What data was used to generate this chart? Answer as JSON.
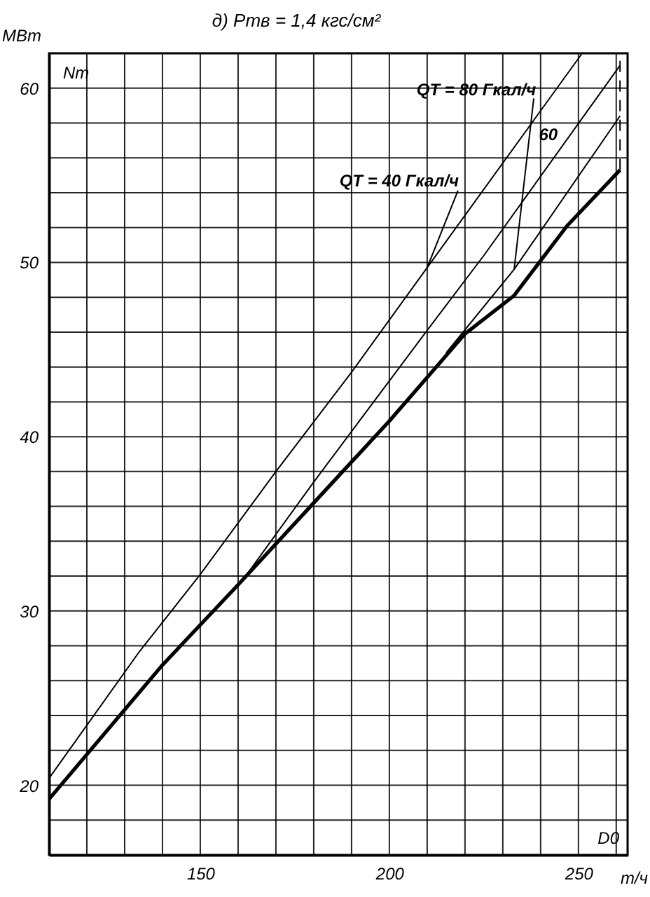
{
  "chart_data": {
    "type": "line",
    "title": "д) Pтв = 1,4 кгс/см²",
    "xlabel": "т/ч",
    "ylabel": "МВт",
    "annotations": [
      "Nт",
      "D0"
    ],
    "xlim": [
      110,
      263
    ],
    "ylim": [
      16,
      62
    ],
    "xticks": [
      {
        "value": 110,
        "label": null
      },
      {
        "value": 120,
        "label": null
      },
      {
        "value": 130,
        "label": null
      },
      {
        "value": 140,
        "label": null
      },
      150,
      {
        "value": 160,
        "label": null
      },
      {
        "value": 170,
        "label": null
      },
      {
        "value": 180,
        "label": null
      },
      {
        "value": 190,
        "label": null
      },
      200,
      {
        "value": 210,
        "label": null
      },
      {
        "value": 220,
        "label": null
      },
      {
        "value": 230,
        "label": null
      },
      {
        "value": 240,
        "label": null
      },
      250,
      {
        "value": 260,
        "label": null
      }
    ],
    "yticks": [
      {
        "value": 18,
        "label": null
      },
      20,
      {
        "value": 22,
        "label": null
      },
      {
        "value": 24,
        "label": null
      },
      {
        "value": 26,
        "label": null
      },
      {
        "value": 28,
        "label": null
      },
      30,
      {
        "value": 32,
        "label": null
      },
      {
        "value": 34,
        "label": null
      },
      {
        "value": 36,
        "label": null
      },
      {
        "value": 38,
        "label": null
      },
      40,
      {
        "value": 42,
        "label": null
      },
      {
        "value": 44,
        "label": null
      },
      {
        "value": 46,
        "label": null
      },
      {
        "value": 48,
        "label": null
      },
      50,
      {
        "value": 52,
        "label": null
      },
      {
        "value": 54,
        "label": null
      },
      {
        "value": 56,
        "label": null
      },
      {
        "value": 58,
        "label": null
      },
      60
    ],
    "grid": true,
    "marker": "none",
    "series": [
      {
        "name": "QТ = 40 Гкал/ч",
        "color": "#000000",
        "x": [
          110,
          134,
          150,
          170,
          190,
          210,
          251
        ],
        "values": [
          20.4,
          27.7,
          32.1,
          38.0,
          43.7,
          49.7,
          62.0
        ]
      },
      {
        "name": "60",
        "color": "#000000",
        "x": [
          162,
          180,
          210,
          225,
          261
        ],
        "values": [
          32.0,
          37.4,
          46.1,
          50.4,
          61.3
        ]
      },
      {
        "name": "QТ = 80 Гкал/ч",
        "color": "#000000",
        "x": [
          215,
          233,
          261
        ],
        "values": [
          44.8,
          49.6,
          58.4
        ]
      },
      {
        "color": "#000000",
        "x": [
          110,
          140,
          160,
          180,
          200,
          220,
          233,
          247,
          261
        ],
        "values": [
          19.2,
          26.9,
          31.5,
          36.2,
          40.9,
          45.9,
          48.1,
          52.1,
          55.3
        ]
      },
      {
        "color": "#000000",
        "x": [
          261,
          261
        ],
        "values": [
          55.3,
          61.8
        ],
        "line_style": "dashed"
      }
    ]
  }
}
